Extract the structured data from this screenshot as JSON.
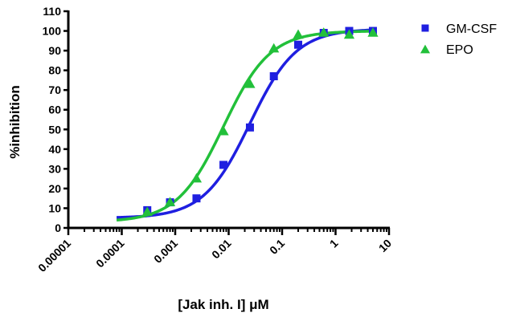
{
  "chart_data": {
    "type": "scatter",
    "title": "",
    "xlabel": "[Jak inh. I] μM",
    "ylabel": "%inhibition",
    "x_scale": "log",
    "xlim": [
      1e-05,
      10
    ],
    "ylim": [
      0,
      110
    ],
    "x_tick_labels": [
      "0.00001",
      "0.0001",
      "0.001",
      "0.01",
      "0.1",
      "1",
      "10"
    ],
    "x_tick_values": [
      1e-05,
      0.0001,
      0.001,
      0.01,
      0.1,
      1,
      10
    ],
    "y_tick_values": [
      0,
      10,
      20,
      30,
      40,
      50,
      60,
      70,
      80,
      90,
      100,
      110
    ],
    "y_tick_labels": [
      "0",
      "10",
      "20",
      "30",
      "40",
      "50",
      "60",
      "70",
      "80",
      "90",
      "100",
      "110"
    ],
    "grid": false,
    "legend_position": "top-right",
    "series": [
      {
        "name": "GM-CSF",
        "marker": "square",
        "color": "#1f1fe0",
        "fit_ic50": 0.025,
        "fit_bottom": 5,
        "fit_top": 101,
        "x": [
          0.0003,
          0.0008,
          0.0025,
          0.008,
          0.025,
          0.07,
          0.2,
          0.6,
          1.8,
          5
        ],
        "y": [
          9,
          13,
          15,
          32,
          51,
          77,
          93,
          99,
          100,
          100
        ]
      },
      {
        "name": "EPO",
        "marker": "triangle",
        "color": "#22c03a",
        "fit_ic50": 0.008,
        "fit_bottom": 3,
        "fit_top": 100,
        "x": [
          0.0003,
          0.0008,
          0.0025,
          0.008,
          0.025,
          0.07,
          0.2,
          0.6,
          1.8,
          5
        ],
        "y": [
          8,
          13,
          25,
          49,
          73,
          91,
          98,
          99,
          98,
          99
        ]
      }
    ]
  }
}
